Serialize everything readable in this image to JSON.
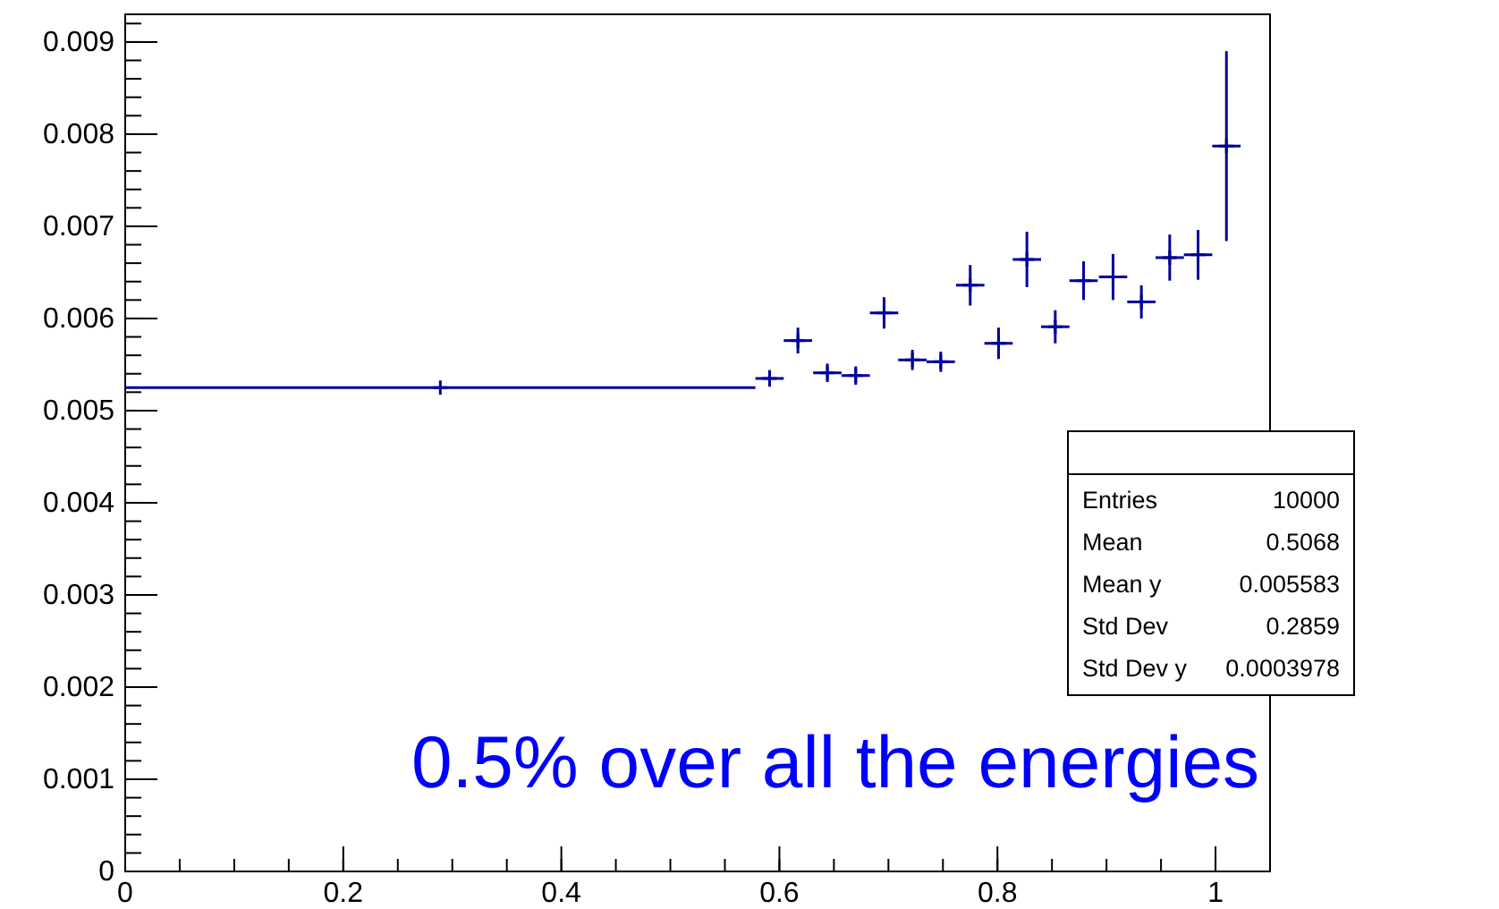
{
  "chart_data": {
    "type": "scatter",
    "marker": "cross",
    "x": [
      0.289,
      0.591,
      0.617,
      0.644,
      0.67,
      0.696,
      0.722,
      0.748,
      0.775,
      0.801,
      0.827,
      0.853,
      0.879,
      0.906,
      0.932,
      0.958,
      0.984,
      1.01
    ],
    "values": [
      0.00525,
      0.00535,
      0.00576,
      0.00541,
      0.00538,
      0.00606,
      0.00555,
      0.00553,
      0.00636,
      0.00573,
      0.00664,
      0.00591,
      0.00641,
      0.00645,
      0.00618,
      0.00666,
      0.00669,
      0.00787
    ],
    "errors": [
      null,
      9e-05,
      0.00014,
      0.0001,
      0.0001,
      0.00017,
      0.00011,
      0.00011,
      0.00022,
      0.00017,
      0.0003,
      0.00018,
      0.00021,
      0.00025,
      0.00018,
      0.00025,
      0.00027,
      0.00103
    ],
    "xerrors": [
      0.289,
      0.013,
      0.013,
      0.013,
      0.013,
      0.013,
      0.013,
      0.013,
      0.013,
      0.013,
      0.013,
      0.013,
      0.013,
      0.013,
      0.013,
      0.013,
      0.013,
      0.013
    ],
    "color": "#000099",
    "xlim": [
      0,
      1.05
    ],
    "xticks": [
      0,
      0.2,
      0.4,
      0.6,
      0.8,
      1
    ],
    "ylim": [
      0,
      0.0093
    ],
    "yticks": [
      0,
      0.001,
      0.002,
      0.003,
      0.004,
      0.005,
      0.006,
      0.007,
      0.008,
      0.009
    ],
    "grid": false,
    "annotations": [
      "0.5% over all the energies",
      "Entries",
      "10000",
      "Mean",
      "0.5068",
      "Mean y",
      "0.005583",
      "Std Dev",
      "0.2859",
      "Std Dev y",
      "0.0003978"
    ]
  }
}
